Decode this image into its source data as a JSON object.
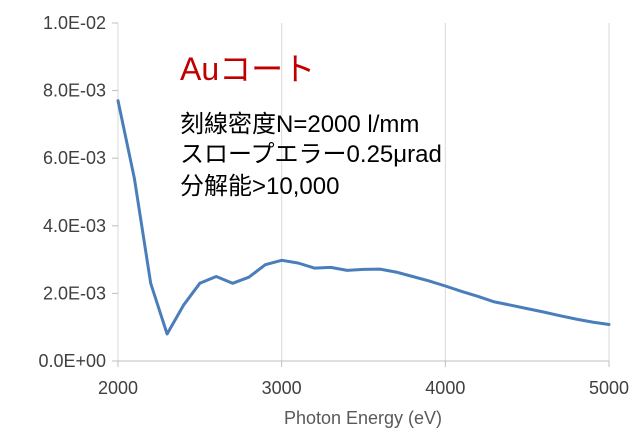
{
  "chart_data": {
    "type": "line",
    "title": "",
    "xlabel": "Photon Energy (eV)",
    "ylabel": "",
    "xlim": [
      2000,
      5000
    ],
    "ylim": [
      0,
      0.01
    ],
    "grid": "vertical",
    "legend": "none",
    "x_ticks": [
      2000,
      3000,
      4000,
      5000
    ],
    "x_tick_labels": [
      "2000",
      "3000",
      "4000",
      "5000"
    ],
    "y_ticks": [
      0,
      0.002,
      0.004,
      0.006,
      0.008,
      0.01
    ],
    "y_tick_labels": [
      "0.0E+00",
      "2.0E-03",
      "4.0E-03",
      "6.0E-03",
      "8.0E-03",
      "1.0E-02"
    ],
    "series": [
      {
        "color": "#4a7ebb",
        "x": [
          2000,
          2100,
          2200,
          2300,
          2400,
          2500,
          2600,
          2700,
          2800,
          2900,
          3000,
          3100,
          3200,
          3300,
          3400,
          3500,
          3600,
          3700,
          3800,
          3900,
          4000,
          4100,
          4200,
          4300,
          4400,
          4500,
          4600,
          4700,
          4800,
          4900,
          5000
        ],
        "values": [
          0.0077,
          0.0054,
          0.0023,
          0.0008,
          0.00165,
          0.0023,
          0.0025,
          0.0023,
          0.00248,
          0.00285,
          0.00298,
          0.0029,
          0.00275,
          0.00277,
          0.00268,
          0.00271,
          0.00272,
          0.00263,
          0.0025,
          0.00237,
          0.00222,
          0.00206,
          0.00191,
          0.00175,
          0.00165,
          0.00155,
          0.00145,
          0.00134,
          0.00124,
          0.00115,
          0.00108
        ]
      }
    ],
    "annotations": {
      "title": "Auコート",
      "title_color": "#c00000",
      "lines": [
        "刻線密度N=2000 l/mm",
        "スロープエラー0.25μrad",
        "分解能>10,000"
      ]
    }
  }
}
